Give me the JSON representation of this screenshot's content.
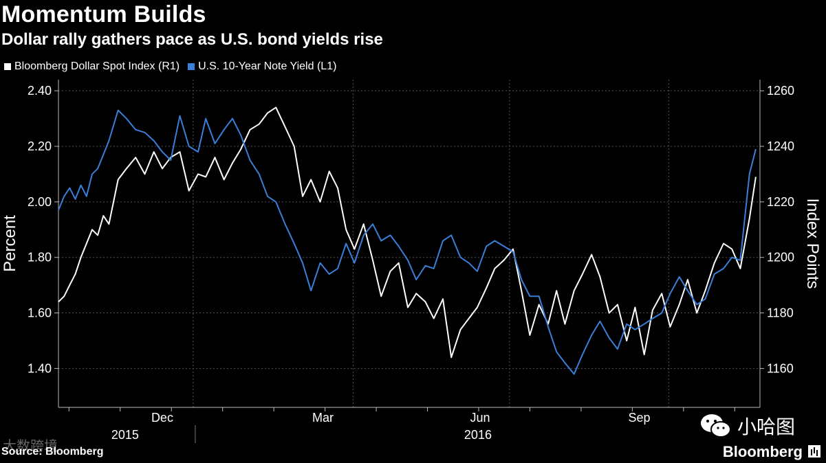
{
  "header": {
    "title": "Momentum Builds",
    "subtitle": "Dollar rally gathers pace as U.S. bond yields rise"
  },
  "colors": {
    "dollar": "#ffffff",
    "yield": "#3a7fd9",
    "grid": "#555555",
    "background": "#000000"
  },
  "footer": {
    "source": "Source: Bloomberg",
    "brand": "Bloomberg",
    "wechat_label": "小哈图",
    "watermark": "大数跨境"
  },
  "chart_data": {
    "type": "line",
    "title": "Momentum Builds",
    "subtitle": "Dollar rally gathers pace as U.S. bond yields rise",
    "x_range": [
      0,
      100
    ],
    "month_labels": [
      "Dec",
      "Mar",
      "Jun",
      "Sep"
    ],
    "year_labels": [
      "2015",
      "2016"
    ],
    "left_axis": {
      "label": "Percent",
      "range": [
        1.26,
        2.44
      ],
      "ticks": [
        1.4,
        1.6,
        1.8,
        2.0,
        2.2,
        2.4
      ],
      "tick_labels": [
        "1.40",
        "1.60",
        "1.80",
        "2.00",
        "2.20",
        "2.40"
      ]
    },
    "right_axis": {
      "label": "Index Points",
      "range": [
        1146,
        1264
      ],
      "ticks": [
        1160,
        1180,
        1200,
        1220,
        1240,
        1260
      ],
      "tick_labels": [
        "1160",
        "1180",
        "1200",
        "1220",
        "1240",
        "1260"
      ]
    },
    "legend_position": "top-left",
    "grid": true,
    "series": [
      {
        "name": "Bloomberg Dollar Spot Index (R1)",
        "axis": "right",
        "color": "#ffffff",
        "x": [
          0,
          0.8,
          1.6,
          2.4,
          3.2,
          4.0,
          4.8,
          5.6,
          6.4,
          7.2,
          8.5,
          9.7,
          11,
          12.3,
          13.6,
          14.8,
          16,
          17.3,
          18.6,
          19.9,
          21,
          22.3,
          23.6,
          24.8,
          26,
          27.3,
          28.6,
          29.8,
          31,
          32.3,
          33.6,
          34.8,
          36,
          37.3,
          38.6,
          39.8,
          41,
          42.2,
          43.5,
          44.8,
          46,
          47.3,
          48.5,
          49.8,
          51,
          52.3,
          53.5,
          54.8,
          56,
          57.3,
          58.5,
          59.7,
          61,
          62.2,
          63.5,
          64.8,
          66,
          67.2,
          68.5,
          69.8,
          71,
          72.2,
          73.5,
          74.7,
          76,
          77.2,
          78.5,
          79.7,
          81,
          82.2,
          83.5,
          84.7,
          86,
          87.2,
          88.5,
          89.7,
          91,
          92.2,
          93.5,
          94.8,
          96,
          97.2,
          98.5,
          99.4
        ],
        "y": [
          1184,
          1186,
          1190,
          1194,
          1200,
          1205,
          1210,
          1208,
          1215,
          1212,
          1228,
          1232,
          1236,
          1230,
          1238,
          1232,
          1236,
          1238,
          1224,
          1230,
          1229,
          1236,
          1228,
          1234,
          1239,
          1246,
          1248,
          1252,
          1254,
          1247,
          1240,
          1222,
          1228,
          1220,
          1231,
          1225,
          1210,
          1203,
          1212,
          1199,
          1186,
          1195,
          1198,
          1182,
          1187,
          1184,
          1178,
          1185,
          1164,
          1174,
          1178,
          1182,
          1189,
          1196,
          1199,
          1203,
          1188,
          1172,
          1183,
          1176,
          1188,
          1176,
          1188,
          1194,
          1201,
          1193,
          1180,
          1183,
          1170,
          1182,
          1165,
          1181,
          1187,
          1175,
          1183,
          1192,
          1180,
          1188,
          1198,
          1205,
          1203,
          1196,
          1214,
          1229
        ]
      },
      {
        "name": "U.S. 10-Year Note Yield (L1)",
        "axis": "left",
        "color": "#3a7fd9",
        "x": [
          0,
          0.8,
          1.6,
          2.4,
          3.2,
          4.0,
          4.8,
          5.6,
          6.4,
          7.2,
          8.5,
          9.7,
          11,
          12.3,
          13.6,
          14.8,
          16,
          17.3,
          18.6,
          19.9,
          21,
          22.3,
          23.6,
          24.8,
          26,
          27.3,
          28.6,
          29.8,
          31,
          32.3,
          33.6,
          34.8,
          36,
          37.3,
          38.6,
          39.8,
          41,
          42.2,
          43.5,
          44.8,
          46,
          47.3,
          48.5,
          49.8,
          51,
          52.3,
          53.5,
          54.8,
          56,
          57.3,
          58.5,
          59.7,
          61,
          62.2,
          63.5,
          64.8,
          66,
          67.2,
          68.5,
          69.8,
          71,
          72.2,
          73.5,
          74.7,
          76,
          77.2,
          78.5,
          79.7,
          81,
          82.2,
          83.5,
          84.7,
          86,
          87.2,
          88.5,
          89.7,
          91,
          92.2,
          93.5,
          94.8,
          96,
          97.2,
          98.5,
          99.4
        ],
        "y": [
          1.97,
          2.02,
          2.05,
          2.01,
          2.06,
          2.02,
          2.1,
          2.12,
          2.17,
          2.22,
          2.33,
          2.3,
          2.26,
          2.25,
          2.22,
          2.18,
          2.15,
          2.31,
          2.2,
          2.18,
          2.3,
          2.21,
          2.26,
          2.3,
          2.24,
          2.15,
          2.1,
          2.02,
          2.0,
          1.92,
          1.85,
          1.78,
          1.68,
          1.78,
          1.74,
          1.76,
          1.85,
          1.78,
          1.88,
          1.92,
          1.86,
          1.88,
          1.84,
          1.79,
          1.72,
          1.77,
          1.76,
          1.86,
          1.88,
          1.8,
          1.78,
          1.75,
          1.84,
          1.86,
          1.84,
          1.82,
          1.72,
          1.66,
          1.66,
          1.55,
          1.46,
          1.42,
          1.38,
          1.45,
          1.52,
          1.57,
          1.51,
          1.47,
          1.56,
          1.54,
          1.56,
          1.58,
          1.6,
          1.67,
          1.73,
          1.68,
          1.63,
          1.65,
          1.74,
          1.76,
          1.8,
          1.79,
          2.1,
          2.19
        ]
      }
    ]
  }
}
